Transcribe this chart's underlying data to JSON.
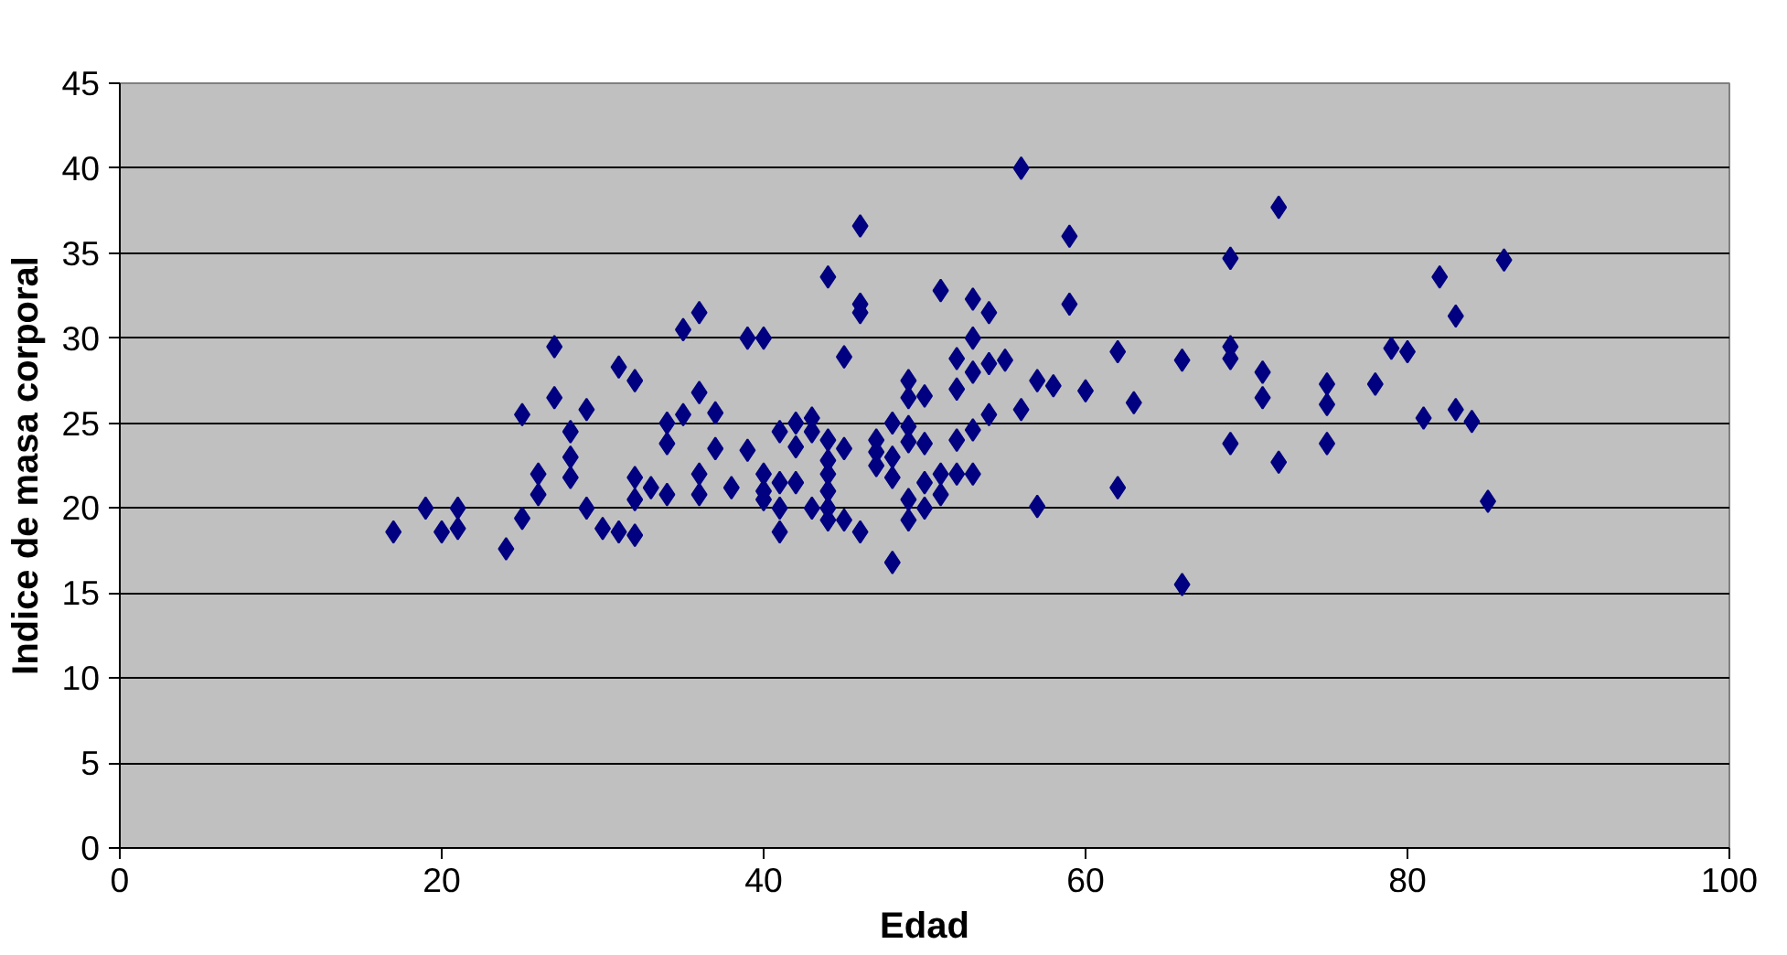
{
  "chart_data": {
    "type": "scatter",
    "xlabel": "Edad",
    "ylabel": "Indice de masa corporal",
    "marker": "diamond",
    "grid": "y",
    "xlim": [
      0,
      100
    ],
    "xticks": [
      0,
      20,
      40,
      60,
      80,
      100
    ],
    "ylim": [
      0,
      45
    ],
    "yticks": [
      0,
      5,
      10,
      15,
      20,
      25,
      30,
      35,
      40,
      45
    ],
    "series": [
      {
        "color": "#000080",
        "x": [
          17,
          19,
          20,
          21,
          21,
          24,
          25,
          25,
          26,
          26,
          27,
          27,
          28,
          28,
          28,
          29,
          29,
          30,
          31,
          31,
          32,
          32,
          32,
          32,
          33,
          34,
          34,
          34,
          35,
          35,
          36,
          36,
          36,
          36,
          37,
          37,
          38,
          39,
          39,
          40,
          40,
          40,
          40,
          41,
          41,
          41,
          41,
          42,
          42,
          42,
          43,
          43,
          43,
          44,
          44,
          44,
          44,
          44,
          44,
          44,
          45,
          45,
          45,
          46,
          46,
          46,
          46,
          47,
          47,
          47,
          48,
          48,
          48,
          48,
          49,
          49,
          49,
          49,
          49,
          49,
          50,
          50,
          50,
          50,
          51,
          51,
          51,
          52,
          52,
          52,
          52,
          53,
          53,
          53,
          53,
          53,
          54,
          54,
          54,
          55,
          56,
          56,
          57,
          57,
          58,
          59,
          59,
          60,
          62,
          62,
          63,
          66,
          66,
          69,
          69,
          69,
          69,
          71,
          71,
          72,
          72,
          75,
          75,
          75,
          78,
          79,
          80,
          81,
          82,
          83,
          83,
          84,
          85,
          86
        ],
        "values": [
          18.6,
          20,
          18.6,
          20,
          18.8,
          17.6,
          19.4,
          25.5,
          20.8,
          22,
          29.5,
          26.5,
          24.5,
          23,
          21.8,
          20,
          25.8,
          18.8,
          28.3,
          18.6,
          27.5,
          21.8,
          20.5,
          18.4,
          21.2,
          25,
          23.8,
          20.8,
          25.5,
          30.5,
          31.5,
          26.8,
          20.8,
          22,
          25.6,
          23.5,
          21.2,
          23.4,
          30,
          30,
          22,
          21,
          20.5,
          20,
          18.6,
          21.5,
          24.5,
          25,
          23.6,
          21.5,
          25.3,
          24.5,
          20,
          33.6,
          24,
          22.8,
          22,
          21,
          20,
          19.3,
          28.9,
          23.5,
          19.3,
          36.6,
          32,
          31.5,
          18.6,
          24,
          23.3,
          22.5,
          16.8,
          25,
          23,
          21.8,
          27.5,
          26.5,
          24.8,
          23.9,
          19.3,
          20.5,
          26.6,
          23.8,
          21.5,
          20,
          32.8,
          22,
          20.8,
          28.8,
          27,
          24,
          22,
          32.3,
          30,
          28,
          24.6,
          22,
          31.5,
          28.5,
          25.5,
          28.7,
          40,
          25.8,
          27.5,
          20.1,
          27.2,
          36,
          32,
          26.9,
          29.2,
          21.2,
          26.2,
          28.7,
          15.5,
          34.7,
          29.5,
          28.8,
          23.8,
          28,
          26.5,
          37.7,
          22.7,
          27.3,
          26.1,
          23.8,
          27.3,
          29.4,
          29.2,
          25.3,
          33.6,
          31.3,
          25.8,
          25.1,
          20.4,
          34.6
        ]
      }
    ]
  }
}
